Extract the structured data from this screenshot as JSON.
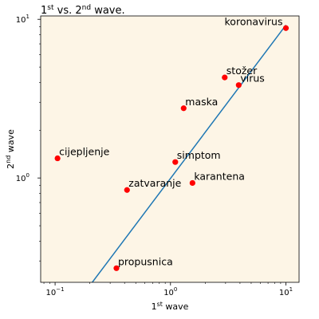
{
  "chart_data": {
    "type": "scatter",
    "title": {
      "base1": "1",
      "sup1": "st",
      "mid": " vs. 2",
      "sup2": "nd",
      "end": " wave."
    },
    "xlabel": {
      "base": "1",
      "sup": "st",
      "end": " wave"
    },
    "ylabel": {
      "base": "2",
      "sup": "nd",
      "end": " wave"
    },
    "x_scale": "log",
    "y_scale": "log",
    "xlim": [
      0.075,
      13
    ],
    "ylim": [
      0.22,
      10.5
    ],
    "x_ticks": [
      {
        "value": 0.1,
        "base": "10",
        "exp": "−1"
      },
      {
        "value": 1,
        "base": "10",
        "exp": "0"
      },
      {
        "value": 10,
        "base": "10",
        "exp": "1"
      }
    ],
    "y_ticks": [
      {
        "value": 1,
        "base": "10",
        "exp": "0"
      },
      {
        "value": 10,
        "base": "10",
        "exp": "1"
      }
    ],
    "points": [
      {
        "label": "koronavirus",
        "x": 10.0,
        "y": 8.8
      },
      {
        "label": "stožer",
        "x": 2.95,
        "y": 4.3
      },
      {
        "label": "virus",
        "x": 3.9,
        "y": 3.85
      },
      {
        "label": "maska",
        "x": 1.3,
        "y": 2.75
      },
      {
        "label": "cijepljenje",
        "x": 0.105,
        "y": 1.33
      },
      {
        "label": "simptom",
        "x": 1.1,
        "y": 1.26
      },
      {
        "label": "karantena",
        "x": 1.55,
        "y": 0.93
      },
      {
        "label": "zatvaranje",
        "x": 0.42,
        "y": 0.84
      },
      {
        "label": "propusnica",
        "x": 0.34,
        "y": 0.27
      }
    ],
    "fit_line": {
      "x": [
        0.21,
        10.0
      ],
      "y": [
        0.22,
        9.2
      ]
    },
    "colors": {
      "background": "#fdf5e6",
      "points": "#ff0000",
      "line": "#1f77b4"
    },
    "grid": false
  }
}
